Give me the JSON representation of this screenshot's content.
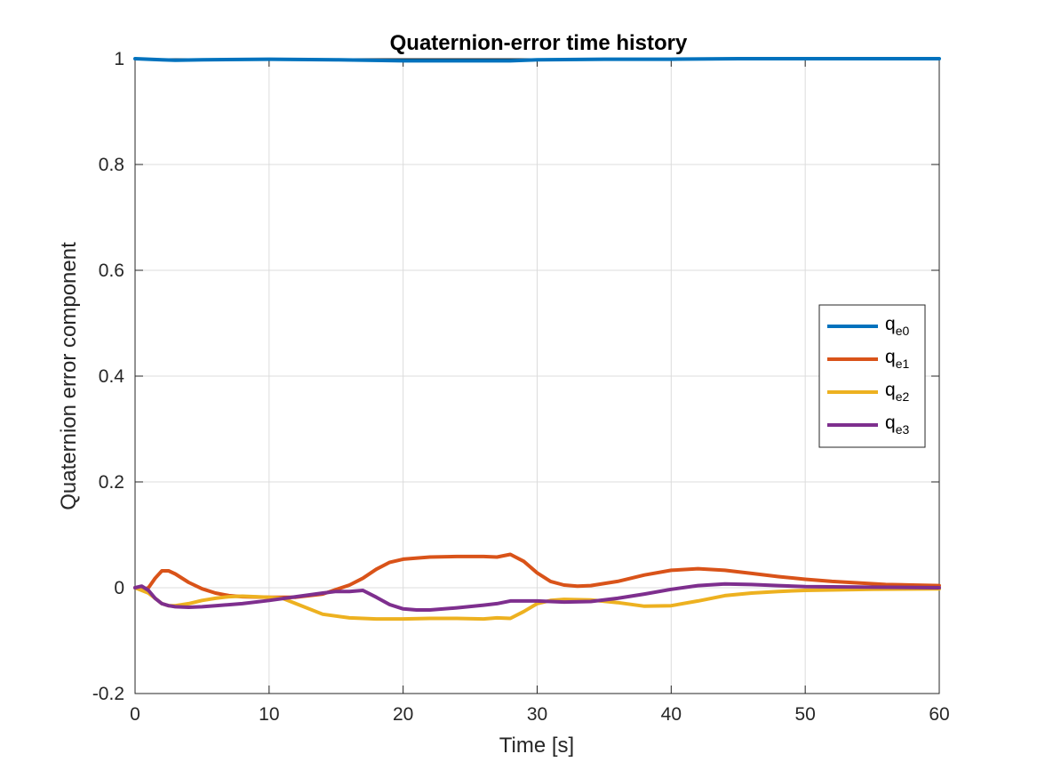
{
  "chart_data": {
    "type": "line",
    "title": "Quaternion-error time history",
    "xlabel": "Time [s]",
    "ylabel": "Quaternion error component",
    "xlim": [
      0,
      60
    ],
    "ylim": [
      -0.2,
      1
    ],
    "xticks": [
      0,
      10,
      20,
      30,
      40,
      50,
      60
    ],
    "xtick_labels": [
      "0",
      "10",
      "20",
      "30",
      "40",
      "50",
      "60"
    ],
    "yticks": [
      -0.2,
      0,
      0.2,
      0.4,
      0.6,
      0.8,
      1
    ],
    "ytick_labels": [
      "-0.2",
      "0",
      "0.2",
      "0.4",
      "0.6",
      "0.8",
      "1"
    ],
    "grid": true,
    "legend_position": "right",
    "series": [
      {
        "name": "q",
        "subscript": "e0",
        "color": "#0072BD",
        "x": [
          0,
          1,
          2,
          3,
          5,
          10,
          15,
          20,
          25,
          28,
          30,
          35,
          40,
          45,
          50,
          55,
          60
        ],
        "y": [
          1.0,
          0.999,
          0.998,
          0.997,
          0.998,
          0.999,
          0.998,
          0.996,
          0.996,
          0.996,
          0.998,
          0.999,
          0.999,
          1.0,
          1.0,
          1.0,
          1.0
        ]
      },
      {
        "name": "q",
        "subscript": "e1",
        "color": "#D95319",
        "x": [
          0,
          0.5,
          1,
          1.5,
          2,
          2.5,
          3,
          4,
          5,
          6,
          7,
          8,
          10,
          12,
          14,
          16,
          17,
          18,
          19,
          20,
          22,
          24,
          26,
          27,
          28,
          29,
          30,
          31,
          32,
          33,
          34,
          36,
          38,
          40,
          42,
          44,
          46,
          48,
          50,
          52,
          54,
          56,
          58,
          60
        ],
        "y": [
          0.0,
          -0.004,
          0.0,
          0.018,
          0.032,
          0.032,
          0.026,
          0.01,
          -0.002,
          -0.01,
          -0.015,
          -0.017,
          -0.018,
          -0.018,
          -0.012,
          0.005,
          0.018,
          0.035,
          0.048,
          0.054,
          0.058,
          0.059,
          0.059,
          0.058,
          0.063,
          0.05,
          0.028,
          0.012,
          0.005,
          0.003,
          0.004,
          0.012,
          0.024,
          0.033,
          0.036,
          0.033,
          0.027,
          0.021,
          0.016,
          0.012,
          0.009,
          0.006,
          0.005,
          0.004
        ]
      },
      {
        "name": "q",
        "subscript": "e2",
        "color": "#EDB120",
        "x": [
          0,
          1,
          2,
          2.5,
          3,
          4,
          5,
          6,
          7,
          8,
          9,
          10,
          11,
          12,
          14,
          16,
          18,
          20,
          22,
          24,
          26,
          27,
          28,
          29,
          30,
          31,
          32,
          34,
          36,
          38,
          40,
          42,
          44,
          46,
          48,
          50,
          55,
          60
        ],
        "y": [
          0.0,
          -0.01,
          -0.03,
          -0.034,
          -0.034,
          -0.03,
          -0.024,
          -0.02,
          -0.017,
          -0.016,
          -0.017,
          -0.018,
          -0.02,
          -0.03,
          -0.05,
          -0.057,
          -0.059,
          -0.059,
          -0.058,
          -0.058,
          -0.059,
          -0.057,
          -0.058,
          -0.045,
          -0.03,
          -0.024,
          -0.022,
          -0.023,
          -0.028,
          -0.035,
          -0.034,
          -0.025,
          -0.015,
          -0.01,
          -0.007,
          -0.005,
          -0.003,
          -0.002
        ]
      },
      {
        "name": "q",
        "subscript": "e3",
        "color": "#7E2F8E",
        "x": [
          0,
          0.5,
          1,
          1.5,
          2,
          2.5,
          3,
          4,
          5,
          6,
          8,
          10,
          12,
          14,
          15,
          16,
          17,
          18,
          19,
          20,
          21,
          22,
          24,
          26,
          27,
          28,
          30,
          32,
          34,
          36,
          38,
          40,
          42,
          44,
          46,
          48,
          50,
          55,
          60
        ],
        "y": [
          0.0,
          0.003,
          -0.005,
          -0.02,
          -0.03,
          -0.034,
          -0.036,
          -0.037,
          -0.036,
          -0.034,
          -0.03,
          -0.024,
          -0.017,
          -0.01,
          -0.007,
          -0.007,
          -0.005,
          -0.018,
          -0.032,
          -0.04,
          -0.042,
          -0.042,
          -0.038,
          -0.033,
          -0.03,
          -0.025,
          -0.025,
          -0.027,
          -0.026,
          -0.02,
          -0.012,
          -0.003,
          0.004,
          0.007,
          0.006,
          0.004,
          0.002,
          0.001,
          0.0
        ]
      }
    ]
  }
}
